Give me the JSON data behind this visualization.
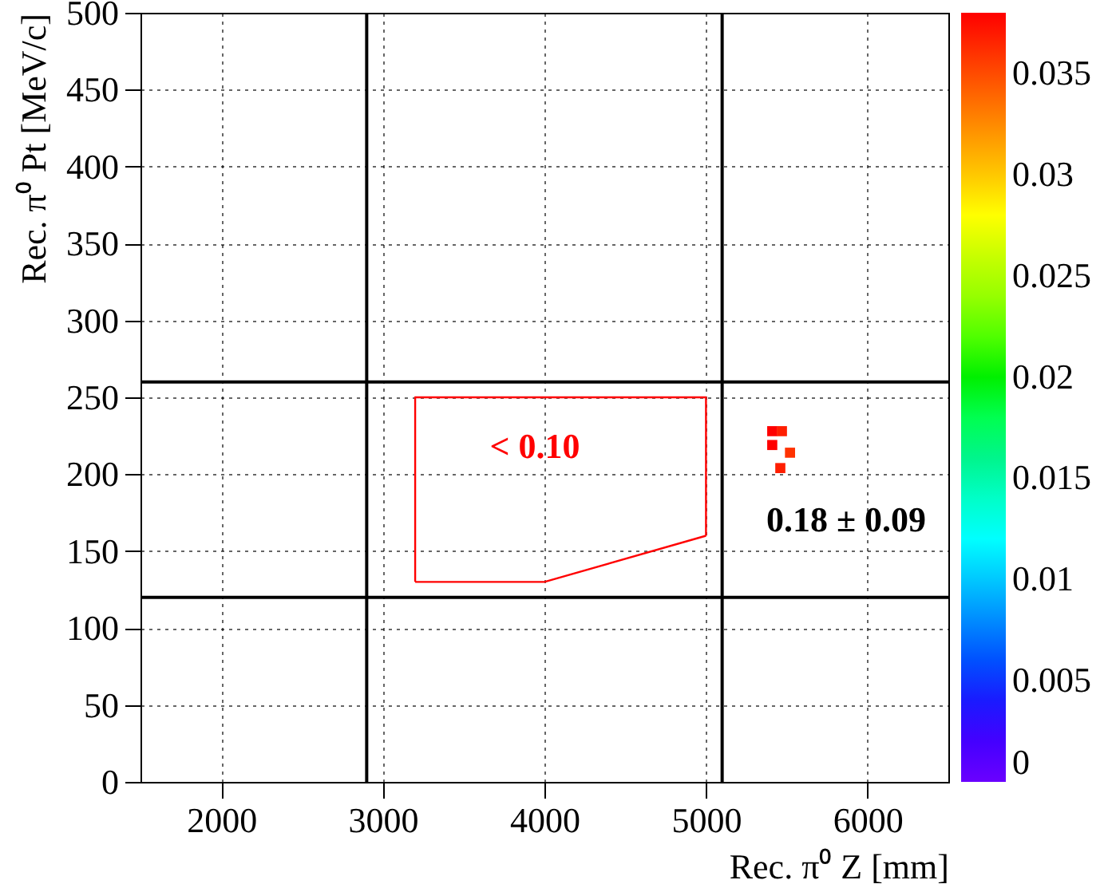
{
  "chart_data": {
    "type": "scatter",
    "xlabel": "Rec. π⁰ Z [mm]",
    "ylabel": "Rec. π⁰ Pt [MeV/c]",
    "xlim": [
      1500,
      6500
    ],
    "xticks": [
      2000,
      3000,
      4000,
      5000,
      6000
    ],
    "ylim": [
      0,
      500
    ],
    "yticks": [
      0,
      50,
      100,
      150,
      200,
      250,
      300,
      350,
      400,
      450,
      500
    ],
    "grid": true,
    "clim": [
      0,
      0.038
    ],
    "cticks": [
      0,
      0.005,
      0.01,
      0.015,
      0.02,
      0.025,
      0.03,
      0.035
    ],
    "series": [
      {
        "type": "line",
        "x": [
          3200,
          3200,
          5000,
          5000
        ],
        "values": [
          130,
          250,
          250,
          160
        ],
        "color": "#ff0000",
        "marker": "none",
        "line_style": "solid"
      },
      {
        "type": "line",
        "x": [
          3200,
          4000,
          5000
        ],
        "values": [
          130,
          130,
          160
        ],
        "color": "#ff0000",
        "marker": "none",
        "line_style": "solid"
      },
      {
        "x": [
          5410,
          5470,
          5410,
          5520,
          5460
        ],
        "values": [
          228,
          228,
          219,
          214,
          204
        ],
        "colors": [
          "#ff0000",
          "#ff1e00",
          "#ff0000",
          "#ff3200",
          "#ff1e00"
        ],
        "marker": "square"
      }
    ],
    "ref_lines": [
      {
        "axis": "x",
        "value": 2900,
        "color": "#000000"
      },
      {
        "axis": "x",
        "value": 5100,
        "color": "#000000"
      },
      {
        "axis": "y",
        "value": 260,
        "color": "#000000"
      },
      {
        "axis": "y",
        "value": 120,
        "color": "#000000"
      }
    ],
    "annotations": [
      "< 0.10",
      "0.18 ± 0.09"
    ]
  }
}
